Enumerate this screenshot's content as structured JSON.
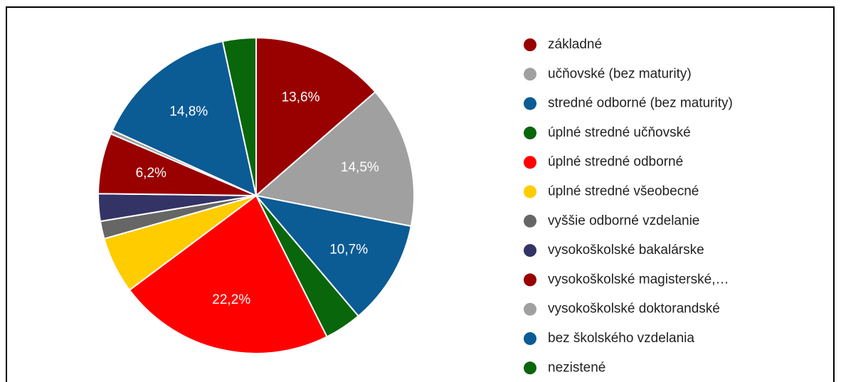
{
  "chart_data": {
    "type": "pie",
    "categories": [
      "základné",
      "učňovské (bez maturity)",
      "stredné odborné (bez maturity)",
      "úplné stredné učňovské",
      "úplné stredné odborné",
      "úplné stredné všeobecné",
      "vyššie odborné vzdelanie",
      "vysokoškolské bakalárske",
      "vysokoškolské magisterské,…",
      "vysokoškolské doktorandské",
      "bez školského vzdelania",
      "nezistené"
    ],
    "values": [
      13.6,
      14.5,
      10.7,
      3.8,
      22.2,
      5.8,
      1.8,
      2.8,
      6.2,
      0.4,
      14.8,
      3.4
    ],
    "value_labels": [
      "13,6%",
      "14,5%",
      "10,7%",
      null,
      "22,2%",
      null,
      null,
      null,
      "6,2%",
      null,
      "14,8%",
      null
    ],
    "colors": [
      "#990000",
      "#a0a0a0",
      "#0b5b94",
      "#0a660a",
      "#ff0000",
      "#ffcc00",
      "#666666",
      "#333366",
      "#990000",
      "#a0a0a0",
      "#0b5b94",
      "#0a660a"
    ],
    "legend": "right"
  }
}
